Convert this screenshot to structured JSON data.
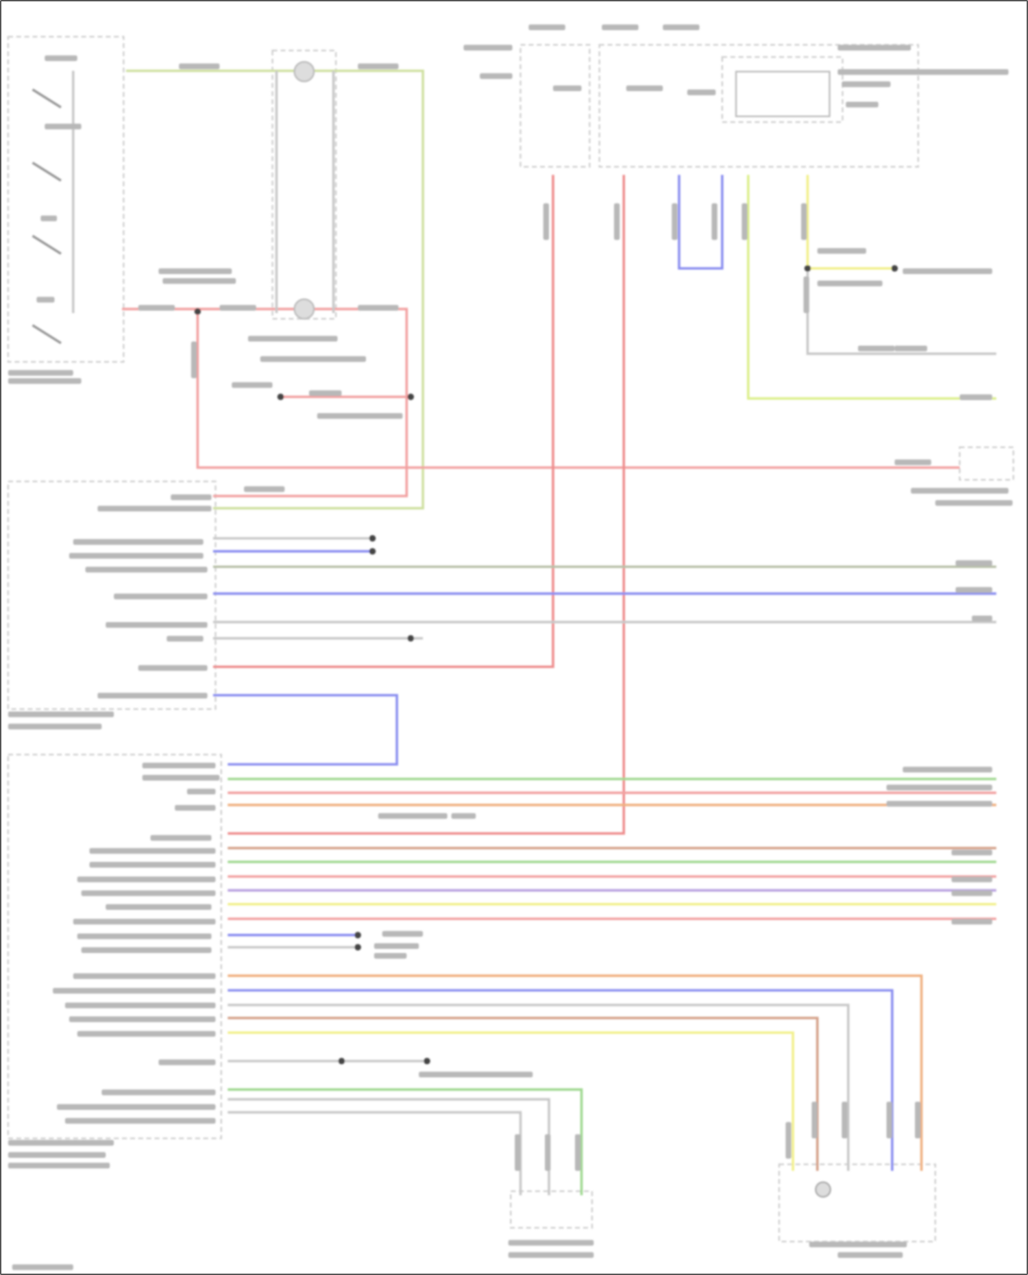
{
  "wire_colors": {
    "light_green": "#cfe0a0",
    "pink_red": "#f2a0a0",
    "red": "#ee8c8c",
    "blue": "#8a8ef0",
    "yellow_green": "#dcef8a",
    "yellow": "#f2f08a",
    "gray": "#c8c8c8",
    "gray_green": "#b8c0a8",
    "green": "#9fd890",
    "orange": "#f0b080",
    "brown": "#d4a088",
    "purple": "#b8a0e0"
  },
  "icons": [
    "switch-icon",
    "clock-spring-icon",
    "relay-icon",
    "splice-dot-icon",
    "ground-icon",
    "sensor-icon"
  ]
}
